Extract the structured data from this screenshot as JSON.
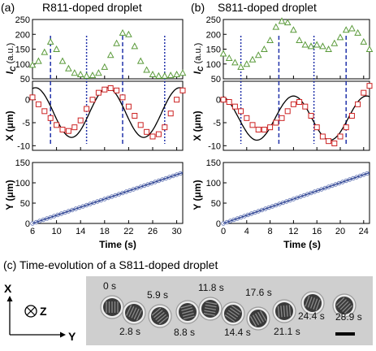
{
  "figure": {
    "panel_a": {
      "letter": "(a)",
      "title": "R811-doped droplet"
    },
    "panel_b": {
      "letter": "(b)",
      "title": "S811-doped droplet"
    },
    "panel_c": {
      "caption": "(c) Time-evolution of a S811-doped droplet"
    },
    "ylabel_ic_main": "I",
    "ylabel_ic_sub": "C",
    "ylabel_ic_unit": " (a.u.)",
    "ylabel_x": "X (μm)",
    "ylabel_y": "Y (μm)",
    "xlabel": "Time (s)",
    "axes_labels": {
      "x": "X",
      "z": "Z",
      "y": "Y"
    },
    "time_labels": [
      "0 s",
      "2.8 s",
      "5.9 s",
      "8.8 s",
      "11.8 s",
      "14.4 s",
      "17.6 s",
      "21.1 s",
      "24.4 s",
      "28.9 s"
    ]
  },
  "colors": {
    "ic": "#5a9a3a",
    "x": "#cc2222",
    "fit": "#000000",
    "y": "#2a3f8f",
    "dash_blue": "#2233aa"
  },
  "chart_data": [
    {
      "panel": "a",
      "type": "scatter",
      "title": "R811-doped droplet",
      "xlim": [
        6,
        31
      ],
      "xticks": [
        6,
        10,
        14,
        18,
        22,
        26,
        30
      ],
      "ic": {
        "ylim": [
          50,
          250
        ],
        "yticks": [
          50,
          100,
          150,
          200,
          250
        ],
        "x": [
          6,
          7,
          8,
          9,
          10,
          11,
          12,
          13,
          14,
          15,
          16,
          17,
          18,
          19,
          20,
          21,
          22,
          23,
          24,
          25,
          26,
          27,
          28,
          29,
          30,
          31
        ],
        "values": [
          97,
          110,
          140,
          175,
          150,
          110,
          85,
          70,
          65,
          60,
          62,
          70,
          90,
          130,
          170,
          205,
          200,
          160,
          110,
          80,
          65,
          60,
          60,
          62,
          65,
          70
        ]
      },
      "xpos": {
        "ylim": [
          -11,
          4
        ],
        "yticks": [
          -10,
          -5,
          0
        ],
        "x": [
          6,
          7,
          8,
          9,
          10,
          11,
          12,
          13,
          14,
          15,
          16,
          17,
          18,
          19,
          20,
          21,
          22,
          23,
          24,
          25,
          26,
          27,
          28,
          29,
          30,
          31
        ],
        "values": [
          0.5,
          -1,
          -2.5,
          -4,
          -5.5,
          -6.5,
          -6.8,
          -6,
          -4.5,
          -2,
          0,
          1.5,
          2.2,
          2.5,
          2,
          0.5,
          -1.5,
          -3.5,
          -5.5,
          -7,
          -8,
          -7.5,
          -6,
          -3,
          0,
          2
        ],
        "fit": {
          "offset": -2.8,
          "amp": 5.4,
          "period": 12,
          "phase_t": 18.5
        }
      },
      "ypos": {
        "ylim": [
          0,
          150
        ],
        "yticks": [
          0,
          50,
          100,
          150
        ],
        "slope": 5.0,
        "start": 0
      },
      "guides": [
        {
          "t": 9,
          "style": "dash"
        },
        {
          "t": 15,
          "style": "dot"
        },
        {
          "t": 21,
          "style": "dash"
        },
        {
          "t": 28,
          "style": "dot"
        }
      ]
    },
    {
      "panel": "b",
      "type": "scatter",
      "title": "S811-doped droplet",
      "xlim": [
        0,
        25
      ],
      "xticks": [
        0,
        4,
        8,
        12,
        16,
        20,
        24
      ],
      "ic": {
        "ylim": [
          50,
          250
        ],
        "yticks": [
          50,
          100,
          150,
          200,
          250
        ],
        "x": [
          0,
          1,
          2,
          3,
          4,
          5,
          6,
          7,
          8,
          9,
          10,
          11,
          12,
          13,
          14,
          15,
          16,
          17,
          18,
          19,
          20,
          21,
          22,
          23,
          24,
          25
        ],
        "values": [
          135,
          120,
          105,
          90,
          100,
          115,
          130,
          150,
          180,
          225,
          245,
          240,
          215,
          180,
          165,
          160,
          165,
          160,
          150,
          170,
          190,
          215,
          220,
          205,
          175,
          150
        ],
        "style": "triangle"
      },
      "xpos": {
        "ylim": [
          -11,
          4
        ],
        "yticks": [
          -10,
          -5,
          0
        ],
        "x": [
          0,
          1,
          2,
          3,
          4,
          5,
          6,
          7,
          8,
          9,
          10,
          11,
          12,
          13,
          14,
          15,
          16,
          17,
          18,
          19,
          20,
          21,
          22,
          23,
          24,
          25
        ],
        "values": [
          0,
          -0.5,
          -1.5,
          -2.5,
          -4,
          -5.5,
          -6.5,
          -6.5,
          -6,
          -5,
          -4,
          -2.5,
          -1,
          -0.5,
          -1.5,
          -3.5,
          -6,
          -8,
          -9,
          -9.5,
          -8,
          -6,
          -3.5,
          -1,
          1.5,
          3
        ],
        "fit": {
          "offset": -4.0,
          "amp": 4.8,
          "period": 12.5,
          "phase_t": 12
        }
      },
      "ypos": {
        "ylim": [
          0,
          150
        ],
        "yticks": [
          0,
          50,
          100,
          150
        ],
        "slope": 5.0,
        "start": 0
      },
      "guides": [
        {
          "t": 3,
          "style": "dot"
        },
        {
          "t": 9.5,
          "style": "dash"
        },
        {
          "t": 15.5,
          "style": "dot"
        },
        {
          "t": 21,
          "style": "dash"
        }
      ]
    }
  ]
}
